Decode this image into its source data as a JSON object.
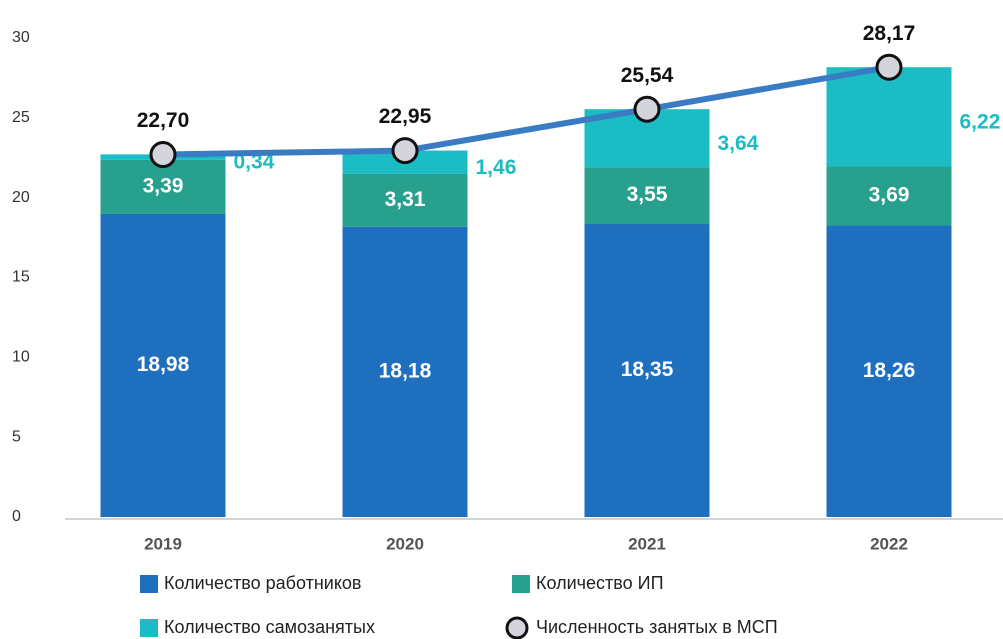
{
  "chart_data": {
    "type": "bar",
    "stacked": true,
    "categories": [
      "2019",
      "2020",
      "2021",
      "2022"
    ],
    "ylim": [
      0,
      30
    ],
    "yticks": [
      0,
      5,
      10,
      15,
      20,
      25,
      30
    ],
    "series": [
      {
        "name": "Количество работников",
        "color": "#1f6fbf",
        "values": [
          18.98,
          18.18,
          18.35,
          18.26
        ],
        "value_labels": [
          "18,98",
          "18,18",
          "18,35",
          "18,26"
        ]
      },
      {
        "name": "Количество ИП",
        "color": "#27a08e",
        "values": [
          3.39,
          3.31,
          3.55,
          3.69
        ],
        "value_labels": [
          "3,39",
          "3,31",
          "3,55",
          "3,69"
        ]
      },
      {
        "name": "Количество самозанятых",
        "color": "#1bbcc4",
        "values": [
          0.34,
          1.46,
          3.64,
          6.22
        ],
        "value_labels": [
          "0,34",
          "1,46",
          "3,64",
          "6,22"
        ]
      },
      {
        "name": "Численность занятых в МСП",
        "type": "line",
        "color": "#3a7cc4",
        "values": [
          22.7,
          22.95,
          25.54,
          28.17
        ],
        "value_labels": [
          "22,70",
          "22,95",
          "25,54",
          "28,17"
        ]
      }
    ]
  }
}
